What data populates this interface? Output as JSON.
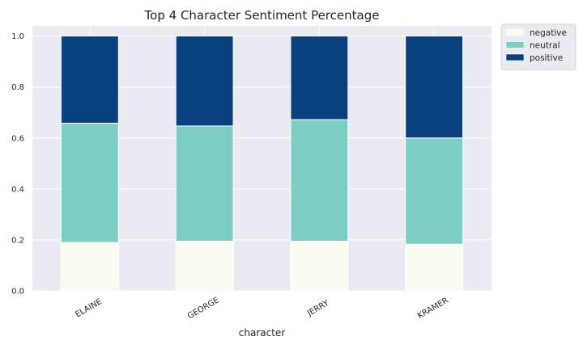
{
  "chart_data": {
    "type": "bar",
    "stacked": true,
    "title": "Top 4 Character Sentiment Percentage",
    "xlabel": "character",
    "ylabel": "",
    "ylim": [
      0,
      1.04
    ],
    "yticks": [
      "0.0",
      "0.2",
      "0.4",
      "0.6",
      "0.8",
      "1.0"
    ],
    "categories": [
      "ELAINE",
      "GEORGE",
      "JERRY",
      "KRAMER"
    ],
    "series": [
      {
        "name": "negative",
        "color": "#f7fcf0",
        "values": [
          0.19,
          0.195,
          0.195,
          0.183
        ]
      },
      {
        "name": "neutral",
        "color": "#7ccdc4",
        "values": [
          0.468,
          0.452,
          0.477,
          0.417
        ]
      },
      {
        "name": "positive",
        "color": "#08407e",
        "values": [
          0.342,
          0.353,
          0.328,
          0.4
        ]
      }
    ],
    "grid": true,
    "legend_position": "outside-top-right"
  }
}
